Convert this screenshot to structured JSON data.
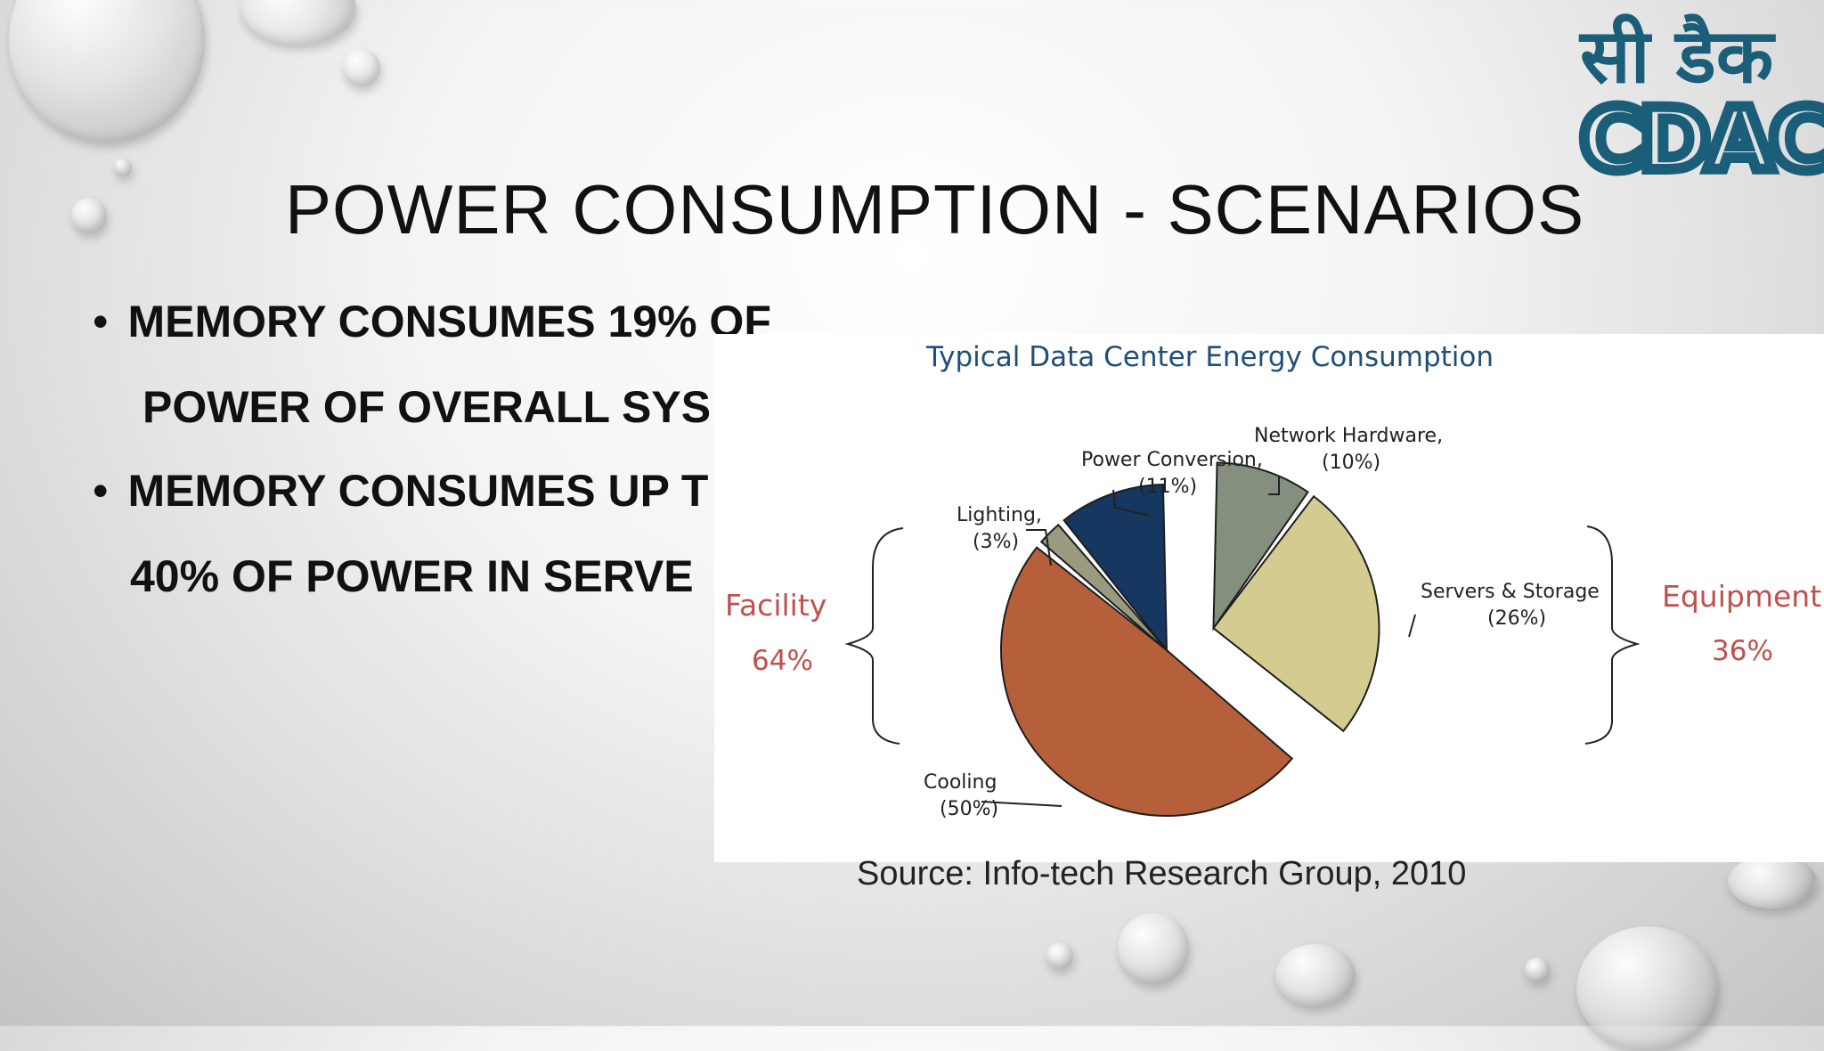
{
  "slide": {
    "title": "POWER CONSUMPTION - SCENARIOS",
    "bullets": [
      {
        "line1": "MEMORY CONSUMES 19% OF",
        "line2": "POWER OF OVERALL SYS"
      },
      {
        "line1": "MEMORY CONSUMES UP T",
        "line2": "40% OF  POWER IN SERVE"
      }
    ],
    "source": "Source: Info-tech Research Group, 2010",
    "logo": {
      "hindi": "सी डैक",
      "latin": "CDAC",
      "color": "#1a5e7a"
    }
  },
  "chart_data": {
    "type": "pie",
    "title": "Typical Data Center Energy Consumption",
    "slices": [
      {
        "label": "Network Hardware,",
        "pct_label": "(10%)",
        "value": 10,
        "color": "#848f7e",
        "exploded": true
      },
      {
        "label": "Servers & Storage",
        "pct_label": "(26%)",
        "value": 26,
        "color": "#d4cb91",
        "exploded": true
      },
      {
        "label": "Cooling",
        "pct_label": "(50%)",
        "value": 50,
        "color": "#b5603b",
        "exploded": false
      },
      {
        "label": "Lighting,",
        "pct_label": "(3%)",
        "value": 3,
        "color": "#9a9a80",
        "exploded": false
      },
      {
        "label": "Power Conversion,",
        "pct_label": "(11%)",
        "value": 11,
        "color": "#16375f",
        "exploded": false
      }
    ],
    "groups": [
      {
        "name": "Facility",
        "pct": "64%",
        "color": "#c0504d"
      },
      {
        "name": "Equipment",
        "pct": "36%",
        "color": "#c0504d"
      }
    ]
  }
}
